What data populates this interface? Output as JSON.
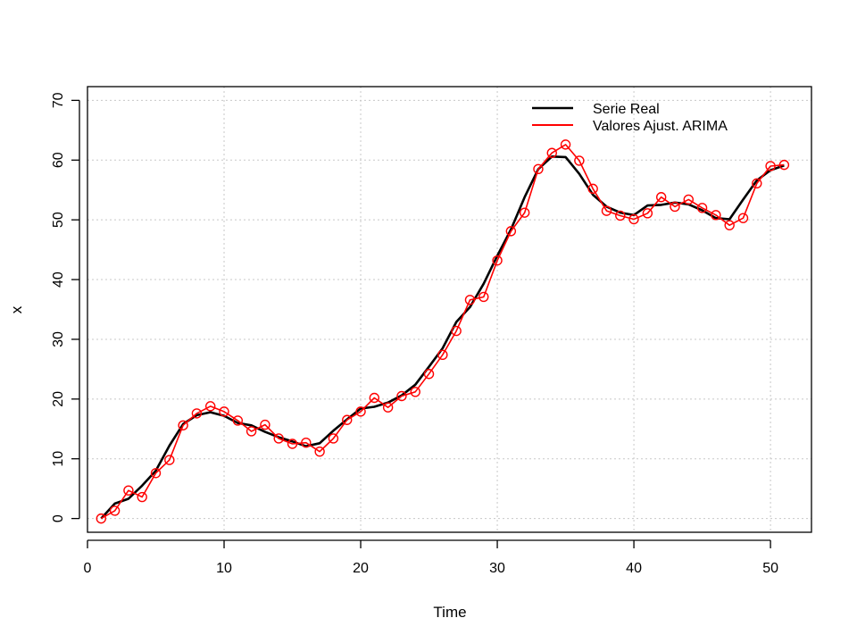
{
  "chart_data": {
    "type": "line",
    "title": "",
    "xlabel": "Time",
    "ylabel": "x",
    "xlim": [
      0,
      53
    ],
    "ylim": [
      -2.3,
      72.3
    ],
    "xticks": [
      0,
      10,
      20,
      30,
      40,
      50
    ],
    "yticks": [
      0,
      10,
      20,
      30,
      40,
      50,
      60,
      70
    ],
    "grid": true,
    "legend_position": "top-right",
    "x": [
      1,
      2,
      3,
      4,
      5,
      6,
      7,
      8,
      9,
      10,
      11,
      12,
      13,
      14,
      15,
      16,
      17,
      18,
      19,
      20,
      21,
      22,
      23,
      24,
      25,
      26,
      27,
      28,
      29,
      30,
      31,
      32,
      33,
      34,
      35,
      36,
      37,
      38,
      39,
      40,
      41,
      42,
      43,
      44,
      45,
      46,
      47,
      48,
      49,
      50,
      51
    ],
    "series": [
      {
        "name": "Serie Real",
        "color": "#000000",
        "style": "line",
        "values": [
          0.0,
          2.5,
          3.3,
          5.5,
          8.0,
          12.2,
          15.8,
          17.3,
          17.8,
          17.2,
          16.0,
          15.6,
          14.5,
          13.6,
          12.9,
          12.1,
          12.6,
          14.7,
          16.6,
          18.4,
          18.7,
          19.4,
          20.6,
          22.4,
          25.4,
          28.5,
          32.9,
          35.4,
          39.3,
          44.0,
          48.4,
          53.8,
          58.5,
          60.6,
          60.5,
          57.7,
          54.2,
          52.2,
          51.2,
          50.8,
          52.4,
          52.5,
          52.9,
          52.6,
          51.6,
          50.3,
          50.1,
          53.4,
          56.6,
          58.3,
          59.1
        ]
      },
      {
        "name": "Valores Ajust. ARIMA",
        "color": "#ff0000",
        "style": "line+points",
        "values": [
          0.0,
          1.3,
          4.7,
          3.6,
          7.6,
          9.8,
          15.6,
          17.6,
          18.8,
          17.9,
          16.4,
          14.6,
          15.7,
          13.4,
          12.5,
          12.7,
          11.2,
          13.4,
          16.5,
          17.9,
          20.2,
          18.6,
          20.5,
          21.2,
          24.2,
          27.4,
          31.4,
          36.6,
          37.1,
          43.2,
          48.1,
          51.2,
          58.5,
          61.2,
          62.6,
          59.9,
          55.2,
          51.5,
          50.7,
          50.1,
          51.1,
          53.8,
          52.2,
          53.4,
          52.0,
          50.8,
          49.1,
          50.3,
          56.1,
          59.0,
          59.2
        ]
      }
    ]
  }
}
